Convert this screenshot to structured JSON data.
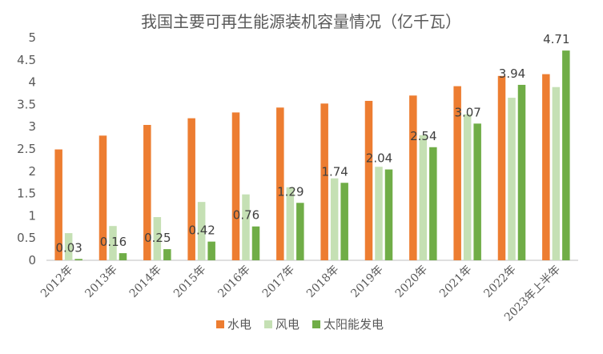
{
  "chart_data": {
    "type": "bar",
    "title": "我国主要可再生能源装机容量情况（亿千瓦）",
    "xlabel": "",
    "ylabel": "",
    "ylim": [
      0,
      5
    ],
    "yticks": [
      0,
      0.5,
      1,
      1.5,
      2,
      2.5,
      3,
      3.5,
      4,
      4.5,
      5
    ],
    "ytick_labels": [
      "0",
      "0.5",
      "1",
      "1.5",
      "2",
      "2.5",
      "3",
      "3.5",
      "4",
      "4.5",
      "5"
    ],
    "grid": false,
    "legend_position": "bottom",
    "categories": [
      "2012年",
      "2013年",
      "2014年",
      "2015年",
      "2016年",
      "2017年",
      "2018年",
      "2019年",
      "2020年",
      "2021年",
      "2022年",
      "2023年上半年"
    ],
    "series": [
      {
        "name": "水电",
        "color": "#ed7d31",
        "values": [
          2.49,
          2.8,
          3.04,
          3.19,
          3.32,
          3.43,
          3.52,
          3.58,
          3.7,
          3.91,
          4.14,
          4.18
        ]
      },
      {
        "name": "风电",
        "color": "#c5e0b4",
        "values": [
          0.61,
          0.77,
          0.97,
          1.31,
          1.48,
          1.64,
          1.84,
          2.1,
          2.81,
          3.28,
          3.65,
          3.89
        ]
      },
      {
        "name": "太阳能发电",
        "color": "#70ad47",
        "values": [
          0.03,
          0.16,
          0.25,
          0.42,
          0.76,
          1.29,
          1.74,
          2.04,
          2.54,
          3.07,
          3.94,
          4.71
        ],
        "data_labels": [
          "0.03",
          "0.16",
          "0.25",
          "0.42",
          "0.76",
          "1.29",
          "1.74",
          "2.04",
          "2.54",
          "3.07",
          "3.94",
          "4.71"
        ]
      }
    ]
  }
}
